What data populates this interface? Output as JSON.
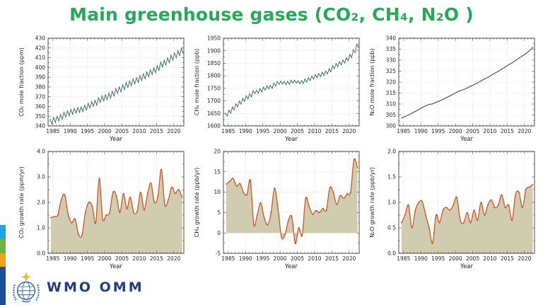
{
  "slide": {
    "title": "Main greenhouse gases (CO₂, CH₄, N₂O )",
    "title_color": "#28a959",
    "footer": {
      "logo_text": "WMO OMM",
      "logo_color": "#1f3c86",
      "logo_icon_blue": "#3f6cb3",
      "logo_star_gold": "#e8b93c"
    },
    "stripe_colors": [
      "#1ba6df",
      "#6cb33f",
      "#f5a21b",
      "#1b4e9b"
    ]
  },
  "chart_data": [
    {
      "id": "co2-mole-fraction",
      "type": "line",
      "ylabel": "CO₂ mole fraction (ppm)",
      "xlabel": "Year",
      "xlim": [
        1983.6,
        2022.9
      ],
      "ylim": [
        340,
        430
      ],
      "xticks": [
        1985,
        1990,
        1995,
        2000,
        2005,
        2010,
        2015,
        2020
      ],
      "yticks": [
        340,
        350,
        360,
        370,
        380,
        390,
        400,
        410,
        420,
        430
      ],
      "ydec": 0,
      "line_color": "#4d8078",
      "marker_color": "#37474a",
      "seasonal_amplitude": 2.3,
      "x": [
        1984,
        1985,
        1986,
        1987,
        1988,
        1989,
        1990,
        1991,
        1992,
        1993,
        1994,
        1995,
        1996,
        1997,
        1998,
        1999,
        2000,
        2001,
        2002,
        2003,
        2004,
        2005,
        2006,
        2007,
        2008,
        2009,
        2010,
        2011,
        2012,
        2013,
        2014,
        2015,
        2016,
        2017,
        2018,
        2019,
        2020,
        2021,
        2022
      ],
      "values": [
        344.5,
        346.1,
        347.6,
        349.3,
        351.6,
        353.1,
        354.4,
        355.6,
        356.4,
        357.1,
        358.8,
        360.8,
        362.6,
        363.8,
        366.6,
        368.3,
        369.5,
        371.1,
        373.2,
        375.8,
        377.5,
        379.8,
        381.9,
        383.8,
        385.6,
        387.0,
        389.1,
        390.9,
        392.9,
        395.2,
        397.2,
        399.4,
        403.1,
        405.0,
        407.4,
        410.1,
        412.4,
        414.7,
        417.2
      ]
    },
    {
      "id": "ch4-mole-fraction",
      "type": "line",
      "ylabel": "CH₄ mole fraction (ppb)",
      "xlabel": "Year",
      "xlim": [
        1983.6,
        2022.9
      ],
      "ylim": [
        1600,
        1950
      ],
      "xticks": [
        1985,
        1990,
        1995,
        2000,
        2005,
        2010,
        2015,
        2020
      ],
      "yticks": [
        1600,
        1650,
        1700,
        1750,
        1800,
        1850,
        1900,
        1950
      ],
      "ydec": 0,
      "line_color": "#4d8078",
      "marker_color": "#37474a",
      "seasonal_amplitude": 5.5,
      "x": [
        1984,
        1985,
        1986,
        1987,
        1988,
        1989,
        1990,
        1991,
        1992,
        1993,
        1994,
        1995,
        1996,
        1997,
        1998,
        1999,
        2000,
        2001,
        2002,
        2003,
        2004,
        2005,
        2006,
        2007,
        2008,
        2009,
        2010,
        2011,
        2012,
        2013,
        2014,
        2015,
        2016,
        2017,
        2018,
        2019,
        2020,
        2021,
        2022
      ],
      "values": [
        1645,
        1657,
        1670,
        1682,
        1693,
        1704,
        1714,
        1722,
        1735,
        1736,
        1742,
        1749,
        1754,
        1756,
        1765,
        1772,
        1773,
        1771,
        1772,
        1777,
        1777,
        1774,
        1775,
        1781,
        1787,
        1793,
        1799,
        1803,
        1808,
        1813,
        1822,
        1834,
        1843,
        1850,
        1857,
        1866,
        1879,
        1898,
        1920
      ]
    },
    {
      "id": "n2o-mole-fraction",
      "type": "line",
      "ylabel": "N₂O mole fraction (ppb)",
      "xlabel": "Year",
      "xlim": [
        1983.6,
        2022.9
      ],
      "ylim": [
        300,
        340
      ],
      "xticks": [
        1985,
        1990,
        1995,
        2000,
        2005,
        2010,
        2015,
        2020
      ],
      "yticks": [
        300,
        305,
        310,
        315,
        320,
        325,
        330,
        335,
        340
      ],
      "ydec": 0,
      "line_color": "#5d4a50",
      "marker_color": "#463a3e",
      "seasonal_amplitude": 0.15,
      "x": [
        1984,
        1985,
        1986,
        1987,
        1988,
        1989,
        1990,
        1991,
        1992,
        1993,
        1994,
        1995,
        1996,
        1997,
        1998,
        1999,
        2000,
        2001,
        2002,
        2003,
        2004,
        2005,
        2006,
        2007,
        2008,
        2009,
        2010,
        2011,
        2012,
        2013,
        2014,
        2015,
        2016,
        2017,
        2018,
        2019,
        2020,
        2021,
        2022
      ],
      "values": [
        303.6,
        304.3,
        305.0,
        305.8,
        306.6,
        307.5,
        308.4,
        309.2,
        309.8,
        310.1,
        310.8,
        311.4,
        312.1,
        312.9,
        313.7,
        314.5,
        315.4,
        316.1,
        316.6,
        317.3,
        318.1,
        318.8,
        319.6,
        320.5,
        321.4,
        322.2,
        323.1,
        324.0,
        324.9,
        325.9,
        326.9,
        327.9,
        328.8,
        329.8,
        330.9,
        331.9,
        333.0,
        334.3,
        335.9
      ]
    },
    {
      "id": "co2-growth-rate",
      "type": "area-line",
      "ylabel": "CO₂ growth rate (ppm/yr)",
      "xlabel": "Year",
      "xlim": [
        1983.6,
        2022.9
      ],
      "ylim": [
        0.0,
        4.0
      ],
      "xticks": [
        1985,
        1990,
        1995,
        2000,
        2005,
        2010,
        2015,
        2020
      ],
      "yticks": [
        0.0,
        1.0,
        2.0,
        3.0,
        4.0
      ],
      "ydec": 1,
      "baseline": 0,
      "line_color": "#d9531e",
      "marker_color": "#6e4b33",
      "fill_color": "#cfccaf",
      "x": [
        1984,
        1985,
        1986,
        1987,
        1988,
        1989,
        1990,
        1991,
        1992,
        1993,
        1994,
        1995,
        1996,
        1997,
        1998,
        1999,
        2000,
        2001,
        2002,
        2003,
        2004,
        2005,
        2006,
        2007,
        2008,
        2009,
        2010,
        2011,
        2012,
        2013,
        2014,
        2015,
        2016,
        2017,
        2018,
        2019,
        2020,
        2021,
        2022
      ],
      "values": [
        1.4,
        1.45,
        1.5,
        2.1,
        2.3,
        1.55,
        1.2,
        1.35,
        0.75,
        0.7,
        1.6,
        2.0,
        1.85,
        1.2,
        2.95,
        1.35,
        1.5,
        1.6,
        2.4,
        2.25,
        1.6,
        2.35,
        1.75,
        2.2,
        1.6,
        1.65,
        2.4,
        1.7,
        2.35,
        2.75,
        2.0,
        2.25,
        3.3,
        1.9,
        2.1,
        2.6,
        2.35,
        2.5,
        2.2
      ]
    },
    {
      "id": "ch4-growth-rate",
      "type": "area-line",
      "ylabel": "CH₄ growth rate (ppb/yr)",
      "xlabel": "Year",
      "xlim": [
        1983.6,
        2022.9
      ],
      "ylim": [
        -5,
        20
      ],
      "xticks": [
        1985,
        1990,
        1995,
        2000,
        2005,
        2010,
        2015,
        2020
      ],
      "yticks": [
        -5,
        0,
        5,
        10,
        15,
        20
      ],
      "ydec": 0,
      "baseline": 0,
      "line_color": "#d9531e",
      "marker_color": "#6e4b33",
      "fill_color": "#cfccaf",
      "x": [
        1984,
        1985,
        1986,
        1987,
        1988,
        1989,
        1990,
        1991,
        1992,
        1993,
        1994,
        1995,
        1996,
        1997,
        1998,
        1999,
        2000,
        2001,
        2002,
        2003,
        2004,
        2005,
        2006,
        2007,
        2008,
        2009,
        2010,
        2011,
        2012,
        2013,
        2014,
        2015,
        2016,
        2017,
        2018,
        2019,
        2020,
        2021,
        2022
      ],
      "values": [
        12.0,
        12.6,
        13.4,
        11.5,
        12.1,
        10.0,
        9.4,
        12.9,
        2.0,
        4.5,
        7.4,
        3.8,
        2.0,
        5.0,
        11.0,
        6.0,
        -1.0,
        -0.5,
        3.0,
        4.0,
        -2.6,
        1.3,
        -0.6,
        8.5,
        6.5,
        4.6,
        5.5,
        5.0,
        6.0,
        5.6,
        11.1,
        10.0,
        7.0,
        9.2,
        8.5,
        9.6,
        10.0,
        18.0,
        16.0
      ]
    },
    {
      "id": "n2o-growth-rate",
      "type": "area-line",
      "ylabel": "N₂O growth rate (ppb/yr)",
      "xlabel": "Year",
      "xlim": [
        1983.6,
        2022.9
      ],
      "ylim": [
        0.0,
        2.0
      ],
      "xticks": [
        1985,
        1990,
        1995,
        2000,
        2005,
        2010,
        2015,
        2020
      ],
      "yticks": [
        0.0,
        0.5,
        1.0,
        1.5,
        2.0
      ],
      "ydec": 1,
      "baseline": 0,
      "line_color": "#d9531e",
      "marker_color": "#6e4b33",
      "fill_color": "#cfccaf",
      "x": [
        1984,
        1985,
        1986,
        1987,
        1988,
        1989,
        1990,
        1991,
        1992,
        1993,
        1994,
        1995,
        1996,
        1997,
        1998,
        1999,
        2000,
        2001,
        2002,
        2003,
        2004,
        2005,
        2006,
        2007,
        2008,
        2009,
        2010,
        2011,
        2012,
        2013,
        2014,
        2015,
        2016,
        2017,
        2018,
        2019,
        2020,
        2021,
        2022
      ],
      "values": [
        0.6,
        0.75,
        0.95,
        0.5,
        0.85,
        1.0,
        1.02,
        0.75,
        0.5,
        0.2,
        0.75,
        0.6,
        0.85,
        0.9,
        0.85,
        0.95,
        1.1,
        0.65,
        0.6,
        0.8,
        0.6,
        0.85,
        0.65,
        1.0,
        0.75,
        0.95,
        1.05,
        0.9,
        0.95,
        1.15,
        0.9,
        0.95,
        0.65,
        1.15,
        1.2,
        0.9,
        1.25,
        1.3,
        1.35
      ]
    }
  ]
}
